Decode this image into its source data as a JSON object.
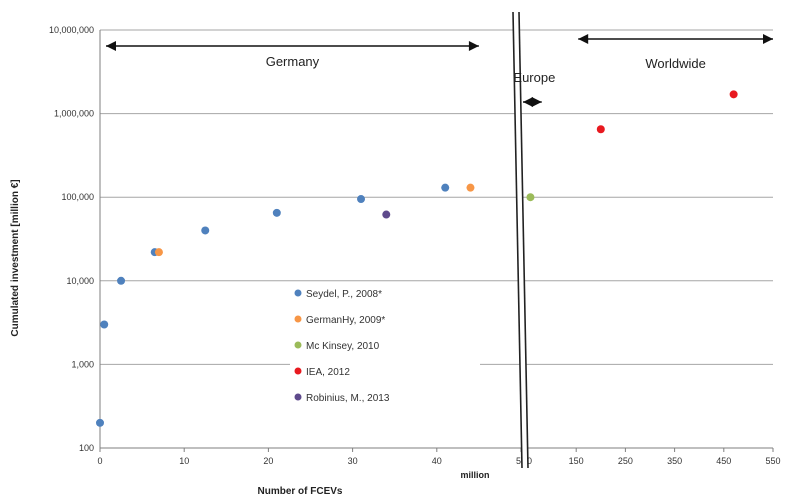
{
  "chart_data": {
    "type": "scatter",
    "title": "",
    "xlabel": "Number of FCEVs",
    "ylabel": "Cumulated investment [million €]",
    "x_unit_label": "million",
    "y_scale": "log",
    "ylim": [
      100,
      10000000
    ],
    "y_ticks": [
      100,
      1000,
      10000,
      100000,
      1000000,
      10000000
    ],
    "y_tick_labels": [
      "100",
      "1,000",
      "10,000",
      "100,000",
      "1,000,000",
      "10,000,000"
    ],
    "x_axis_segments": [
      {
        "range": [
          0,
          50
        ],
        "ticks": [
          0,
          10,
          20,
          30,
          40,
          50
        ],
        "tick_labels": [
          "0",
          "10",
          "20",
          "30",
          "40",
          "50"
        ]
      },
      {
        "range": [
          50,
          550
        ],
        "ticks": [
          50,
          150,
          250,
          350,
          450,
          550
        ],
        "tick_labels": [
          "50",
          "150",
          "250",
          "350",
          "450",
          "550"
        ]
      }
    ],
    "axis_break_between_segments": true,
    "grid": "horizontal",
    "series": [
      {
        "name": "Seydel, P., 2008*",
        "color": "#4f81bd",
        "points": [
          {
            "x": 0,
            "y": 200
          },
          {
            "x": 0.5,
            "y": 3000
          },
          {
            "x": 2.5,
            "y": 10000
          },
          {
            "x": 6.5,
            "y": 22000
          },
          {
            "x": 12.5,
            "y": 40000
          },
          {
            "x": 21,
            "y": 65000
          },
          {
            "x": 31,
            "y": 95000
          },
          {
            "x": 41,
            "y": 130000
          }
        ]
      },
      {
        "name": "GermanHy, 2009*",
        "color": "#f79646",
        "points": [
          {
            "x": 7,
            "y": 22000
          },
          {
            "x": 44,
            "y": 130000
          }
        ]
      },
      {
        "name": "Mc Kinsey, 2010",
        "color": "#9bbb59",
        "points": [
          {
            "x": 57,
            "y": 100000
          }
        ]
      },
      {
        "name": "IEA, 2012",
        "color": "#e8191f",
        "points": [
          {
            "x": 200,
            "y": 650000
          },
          {
            "x": 470,
            "y": 1700000
          }
        ]
      },
      {
        "name": "Robinius, M., 2013",
        "color": "#5e4a8c",
        "points": [
          {
            "x": 34,
            "y": 62000
          }
        ]
      }
    ],
    "annotations": [
      {
        "text": "Germany",
        "arrow": "double",
        "x_range": [
          0,
          45
        ]
      },
      {
        "text": "Europe",
        "arrow": "double",
        "x_range": [
          50,
          80
        ]
      },
      {
        "text": "Worldwide",
        "arrow": "double",
        "x_range": [
          150,
          550
        ]
      }
    ],
    "legend_placement": "center-left, inside plot"
  }
}
